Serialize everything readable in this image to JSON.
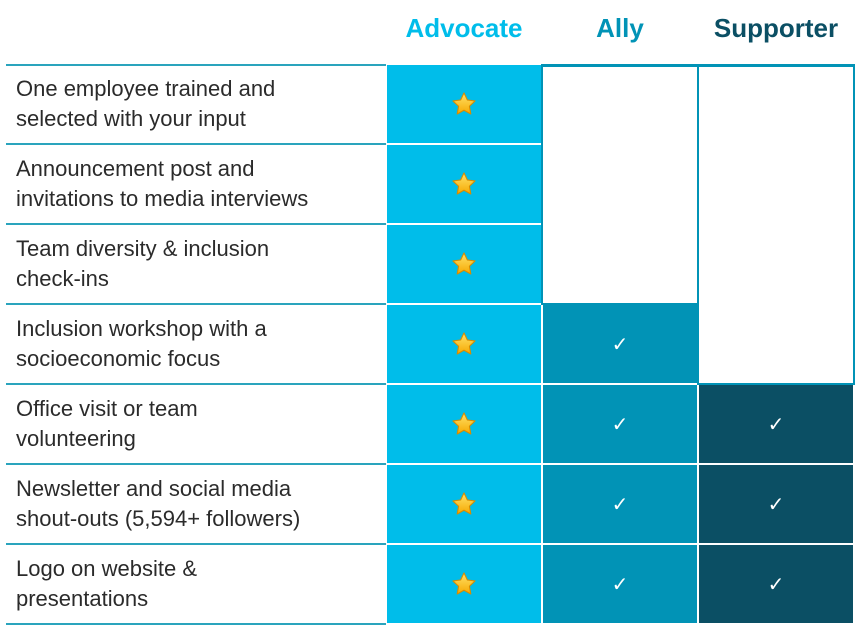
{
  "tiers": {
    "advocate": {
      "label": "Advocate",
      "color": "#00bdea"
    },
    "ally": {
      "label": "Ally",
      "color": "#0193b6"
    },
    "supporter": {
      "label": "Supporter",
      "color": "#0b4f64"
    }
  },
  "rows": [
    {
      "benefit": "One employee trained and\nselected with your input",
      "advocate": "star",
      "ally": "",
      "supporter": ""
    },
    {
      "benefit": "Announcement post and\ninvitations to media interviews",
      "advocate": "star",
      "ally": "",
      "supporter": ""
    },
    {
      "benefit": "Team diversity & inclusion\ncheck-ins",
      "advocate": "star",
      "ally": "",
      "supporter": ""
    },
    {
      "benefit": "Inclusion workshop with a\nsocioeconomic focus",
      "advocate": "star",
      "ally": "check",
      "supporter": ""
    },
    {
      "benefit": "Office visit or team\nvolunteering",
      "advocate": "star",
      "ally": "check",
      "supporter": "check"
    },
    {
      "benefit": "Newsletter and social media\nshout-outs (5,594+ followers)",
      "advocate": "star",
      "ally": "check",
      "supporter": "check"
    },
    {
      "benefit": "Logo on website &\npresentations",
      "advocate": "star",
      "ally": "check",
      "supporter": "check"
    }
  ],
  "icons": {
    "advocate_mark": "star-icon",
    "included_mark": "checkmark-icon",
    "check_glyph": "✓"
  }
}
